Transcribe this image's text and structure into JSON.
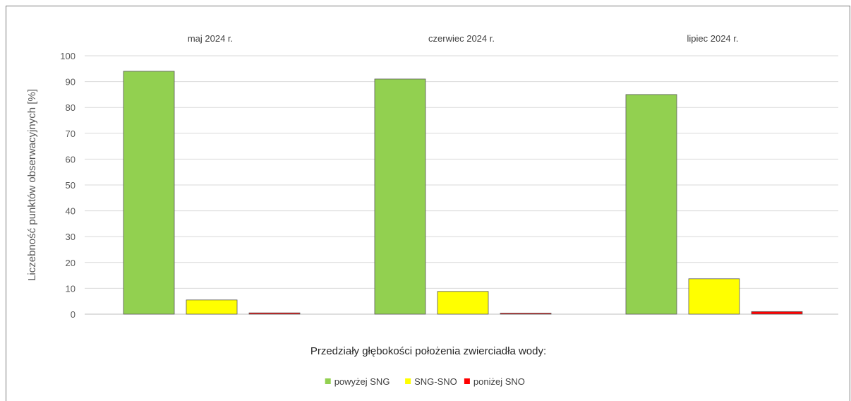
{
  "chart_data": {
    "type": "bar",
    "categories": [
      "maj 2024 r.",
      "czerwiec 2024 r.",
      "lipiec 2024 r."
    ],
    "series": [
      {
        "name": "powyżej SNG",
        "values": [
          94,
          91,
          85
        ],
        "color": "#92d050"
      },
      {
        "name": "SNG-SNO",
        "values": [
          5.5,
          8.8,
          13.7
        ],
        "color": "#ffff00"
      },
      {
        "name": "poniżej SNO",
        "values": [
          0.5,
          0.4,
          1.0
        ],
        "color": "#ff0000"
      }
    ],
    "ylabel": "Liczebność punktów obserwacyjnych [%]",
    "xlabel": "Przedziały głębokości położenia zwierciadła wody:",
    "ylim": [
      0,
      100
    ],
    "yticks": [
      "0",
      "10",
      "20",
      "30",
      "40",
      "50",
      "60",
      "70",
      "80",
      "90",
      "100"
    ],
    "grid": true,
    "legend_position": "bottom"
  }
}
